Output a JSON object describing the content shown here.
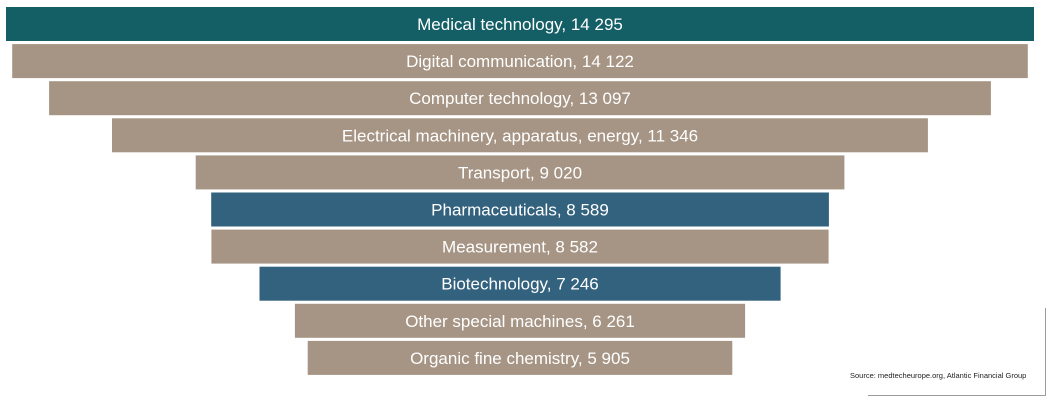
{
  "chart_data": {
    "type": "bar",
    "orientation": "horizontal-centered-funnel",
    "categories": [
      "Medical technology",
      "Digital communication",
      "Computer technology",
      "Electrical machinery, apparatus, energy",
      "Transport",
      "Pharmaceuticals",
      "Measurement",
      "Biotechnology",
      "Other special machines",
      "Organic fine chemistry"
    ],
    "values": [
      14295,
      14122,
      13097,
      11346,
      9020,
      8589,
      8582,
      7246,
      6261,
      5905
    ],
    "labels": [
      "Medical technology,  14 295",
      "Digital communication,  14 122",
      "Computer technology,  13 097",
      "Electrical machinery, apparatus, energy,  11 346",
      "Transport,  9 020",
      "Pharmaceuticals,  8 589",
      "Measurement,  8 582",
      "Biotechnology,  7 246",
      "Other special machines,  6 261",
      "Organic fine chemistry,  5 905"
    ],
    "colors": [
      "#145e66",
      "#a69584",
      "#a69584",
      "#a69584",
      "#a69584",
      "#33627e",
      "#a69584",
      "#33627e",
      "#a69584",
      "#a69584"
    ],
    "grid": false,
    "legend": "none"
  },
  "source": "Source: medtecheurope.org, Atlantic Financial Group"
}
